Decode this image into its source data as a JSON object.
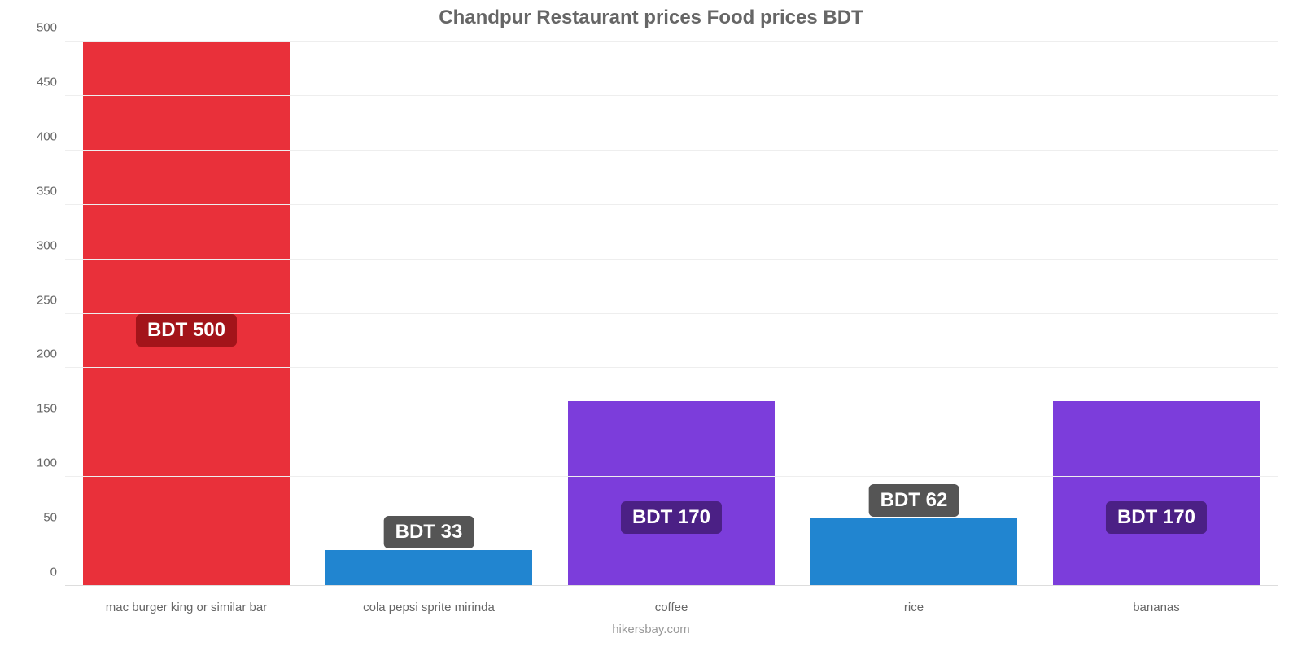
{
  "chart": {
    "type": "bar",
    "title": "Chandpur Restaurant prices Food prices BDT",
    "title_fontsize": 24,
    "title_color": "#666666",
    "credit": "hikersbay.com",
    "credit_fontsize": 15,
    "credit_color": "#999999",
    "background_color": "#ffffff",
    "grid_color": "#eeeeee",
    "ylim": [
      0,
      500
    ],
    "ytick_step": 50,
    "yticks": [
      0,
      50,
      100,
      150,
      200,
      250,
      300,
      350,
      400,
      450,
      500
    ],
    "ytick_fontsize": 15,
    "ytick_color": "#666666",
    "xlabel_fontsize": 15,
    "xlabel_color": "#666666",
    "bar_width": 0.85,
    "datalabel_fontsize": 24,
    "datalabel_fontweight": 700,
    "datalabel_radius": 6,
    "categories": [
      "mac burger king or similar bar",
      "cola pepsi sprite mirinda",
      "coffee",
      "rice",
      "bananas"
    ],
    "values": [
      500,
      33,
      170,
      62,
      170
    ],
    "bar_colors": [
      "#e9303a",
      "#2185d0",
      "#7c3ddb",
      "#2185d0",
      "#7c3ddb"
    ],
    "datalabels": [
      "BDT 500",
      "BDT 33",
      "BDT 170",
      "BDT 62",
      "BDT 170"
    ],
    "datalabel_bg_colors": [
      "#a3141a",
      "#555555",
      "#4b2085",
      "#555555",
      "#4b2085"
    ],
    "datalabel_y_offset_pct": [
      47,
      0,
      37,
      0,
      37
    ]
  }
}
